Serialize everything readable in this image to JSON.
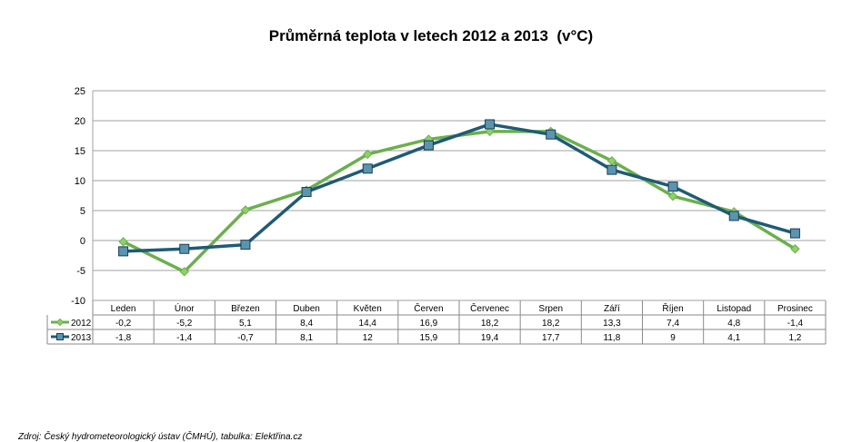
{
  "chart_data": {
    "type": "line",
    "title": "Průměrná teplota v letech 2012 a 2013  (v°C)",
    "categories": [
      "Leden",
      "Únor",
      "Březen",
      "Duben",
      "Květen",
      "Červen",
      "Červenec",
      "Srpen",
      "Září",
      "Říjen",
      "Listopad",
      "Prosinec"
    ],
    "series": [
      {
        "name": "2012",
        "color": "#6ab04c",
        "marker": "diamond",
        "values": [
          -0.2,
          -5.2,
          5.1,
          8.4,
          14.4,
          16.9,
          18.2,
          18.2,
          13.3,
          7.4,
          4.8,
          -1.4
        ],
        "labels": [
          "-0,2",
          "-5,2",
          "5,1",
          "8,4",
          "14,4",
          "16,9",
          "18,2",
          "18,2",
          "13,3",
          "7,4",
          "4,8",
          "-1,4"
        ]
      },
      {
        "name": "2013",
        "color": "#1f5b75",
        "marker": "square",
        "values": [
          -1.8,
          -1.4,
          -0.7,
          8.1,
          12,
          15.9,
          19.4,
          17.7,
          11.8,
          9,
          4.1,
          1.2
        ],
        "labels": [
          "-1,8",
          "-1,4",
          "-0,7",
          "8,1",
          "12",
          "15,9",
          "19,4",
          "17,7",
          "11,8",
          "9",
          "4,1",
          "1,2"
        ]
      }
    ],
    "y_ticks": [
      "25",
      "20",
      "15",
      "10",
      "5",
      "0",
      "-5",
      "-10"
    ],
    "ylim": [
      -10,
      25
    ],
    "grid": true,
    "legend": "data-table"
  },
  "source": "Zdroj: Český hydrometeorologický ústav (ČMHÚ), tabulka: Elektřina.cz"
}
